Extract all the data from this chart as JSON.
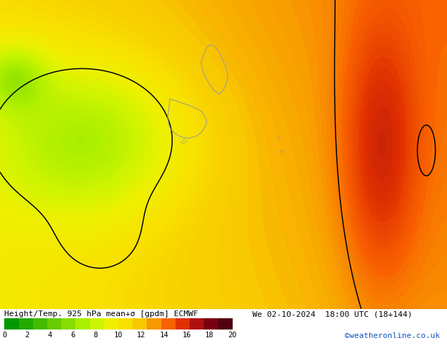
{
  "title_left": "Height/Temp. 925 hPa mean+σ [gpdm] ECMWF",
  "title_right": "We 02-10-2024 18:00 UTC (18+144)",
  "watermark": "©weatheronline.co.uk",
  "colorbar_label_values": [
    0,
    2,
    4,
    6,
    8,
    10,
    12,
    14,
    16,
    18,
    20
  ],
  "cb_colors": [
    "#009900",
    "#22aa00",
    "#44bb00",
    "#66cc00",
    "#88dd00",
    "#aaee00",
    "#ccf400",
    "#eef000",
    "#f8e000",
    "#f8c800",
    "#f89800",
    "#f86000",
    "#e03000",
    "#b01010",
    "#780010",
    "#500010"
  ],
  "figsize": [
    6.34,
    4.9
  ],
  "dpi": 100
}
